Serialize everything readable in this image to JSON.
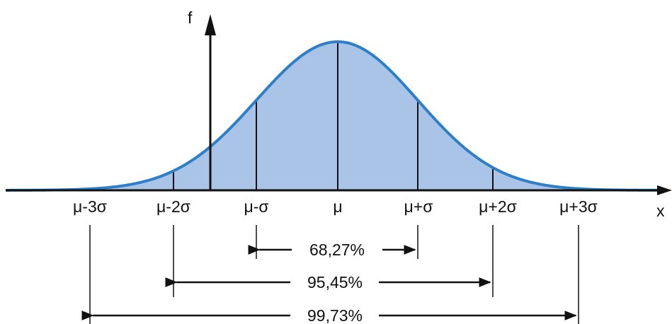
{
  "diagram": {
    "axis": {
      "y_label": "f",
      "x_label": "x"
    },
    "tick_labels": [
      "μ-3σ",
      "μ-2σ",
      "μ-σ",
      "μ",
      "μ+σ",
      "μ+2σ",
      "μ+3σ"
    ],
    "intervals": [
      {
        "label": "68,27%",
        "from": "μ-σ",
        "to": "μ+σ"
      },
      {
        "label": "95,45%",
        "from": "μ-2σ",
        "to": "μ+2σ"
      },
      {
        "label": "99,73%",
        "from": "μ-3σ",
        "to": "μ+3σ"
      }
    ],
    "colors": {
      "curve": "#2f7fc8",
      "fill": "#a9c4e6",
      "axis": "#111111",
      "text": "#111111"
    }
  }
}
